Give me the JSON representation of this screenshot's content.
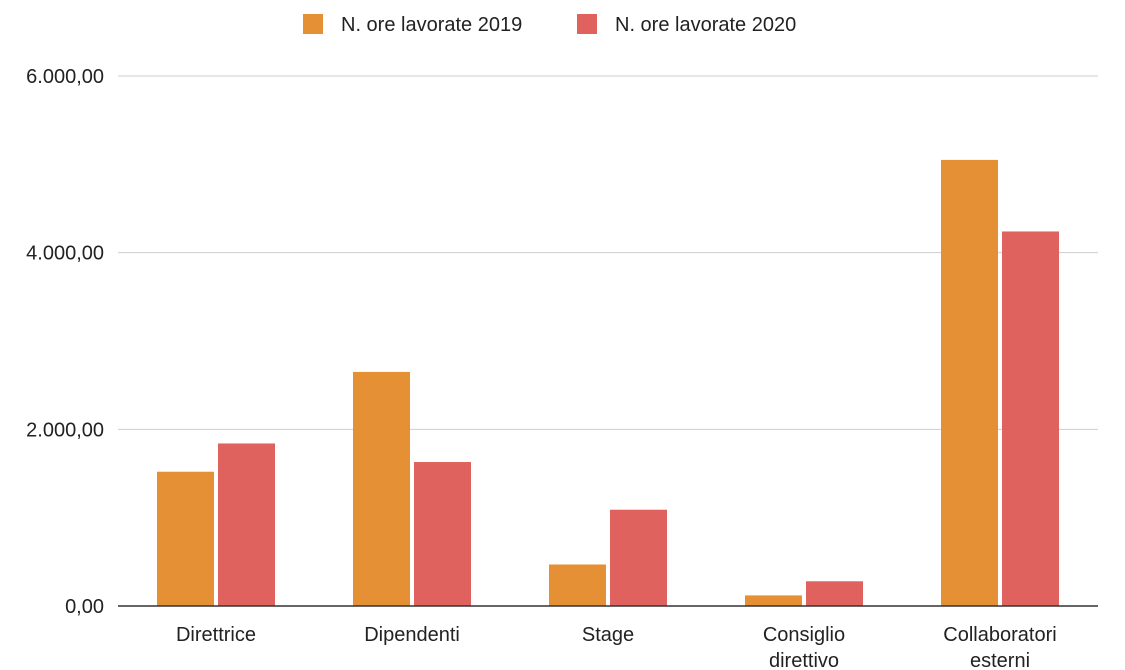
{
  "chart_data": {
    "type": "bar",
    "categories": [
      [
        "Direttrice"
      ],
      [
        "Dipendenti"
      ],
      [
        "Stage"
      ],
      [
        "Consiglio",
        "direttivo"
      ],
      [
        "Collaboratori",
        "esterni"
      ]
    ],
    "series": [
      {
        "name": "N. ore lavorate 2019",
        "color": "#e69036",
        "values": [
          1520,
          2650,
          470,
          120,
          5050
        ]
      },
      {
        "name": "N. ore lavorate 2020",
        "color": "#e0625e",
        "values": [
          1840,
          1630,
          1090,
          280,
          4240
        ]
      }
    ],
    "yticks": [
      0,
      2000,
      4000,
      6000
    ],
    "ytick_labels": [
      "0,00",
      "2.000,00",
      "4.000,00",
      "6.000,00"
    ],
    "ylim": [
      0,
      6000
    ],
    "grid": true,
    "legend_position": "top-center",
    "title": "",
    "xlabel": "",
    "ylabel": ""
  }
}
